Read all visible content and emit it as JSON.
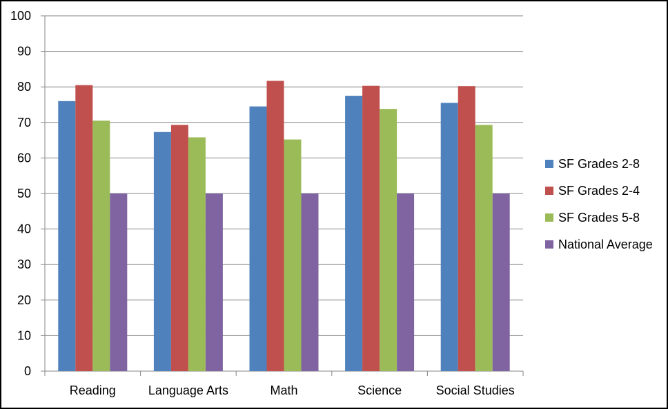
{
  "chart_data": {
    "type": "bar",
    "title": "",
    "xlabel": "",
    "ylabel": "",
    "ylim": [
      0,
      100
    ],
    "y_ticks": [
      0,
      10,
      20,
      30,
      40,
      50,
      60,
      70,
      80,
      90,
      100
    ],
    "categories": [
      "Reading",
      "Language Arts",
      "Math",
      "Science",
      "Social Studies"
    ],
    "series": [
      {
        "name": "SF Grades 2-8",
        "color": "#4F81BD",
        "values": [
          76,
          67.3,
          74.5,
          77.5,
          75.5
        ]
      },
      {
        "name": "SF Grades 2-4",
        "color": "#C0504D",
        "values": [
          80.5,
          69.3,
          81.7,
          80.3,
          80.2
        ]
      },
      {
        "name": "SF Grades 5-8",
        "color": "#9BBB59",
        "values": [
          70.5,
          65.8,
          65.2,
          73.8,
          69.3
        ]
      },
      {
        "name": "National Average",
        "color": "#8064A2",
        "values": [
          50,
          50,
          50,
          50,
          50
        ]
      }
    ],
    "grid": true,
    "legend_position": "right"
  }
}
